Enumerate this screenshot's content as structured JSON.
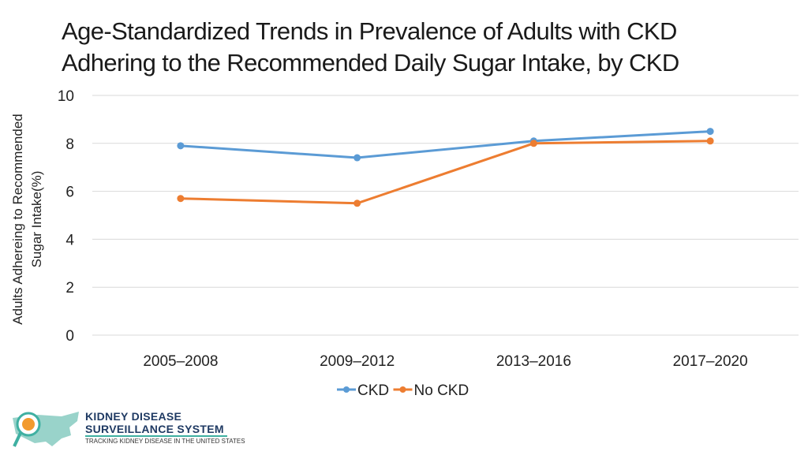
{
  "chart_data": {
    "type": "line",
    "title_lines": [
      "Age-Standardized Trends in Prevalence of Adults with CKD",
      "Adhering to the Recommended Daily Sugar Intake, by CKD"
    ],
    "ylabel_lines": [
      "Adults Adhereing to Recommended",
      "Sugar Intake(%)"
    ],
    "xlabel": "",
    "categories": [
      "2005–2008",
      "2009–2012",
      "2013–2016",
      "2017–2020"
    ],
    "ylim": [
      0,
      10
    ],
    "yticks": [
      "0",
      "2",
      "4",
      "6",
      "8",
      "10"
    ],
    "grid": true,
    "legend_position": "bottom",
    "series": [
      {
        "name": "CKD",
        "color": "#5b9bd5",
        "values": [
          7.9,
          7.4,
          8.1,
          8.5
        ]
      },
      {
        "name": "No CKD",
        "color": "#ed7d31",
        "values": [
          5.7,
          5.5,
          8.0,
          8.1
        ]
      }
    ]
  },
  "logo": {
    "line1": "KIDNEY DISEASE",
    "line2": "SURVEILLANCE SYSTEM",
    "tagline": "TRACKING KIDNEY DISEASE IN THE UNITED STATES",
    "accent": "#3fb0a2",
    "navy": "#1f3a63",
    "orange": "#f29a2e"
  }
}
